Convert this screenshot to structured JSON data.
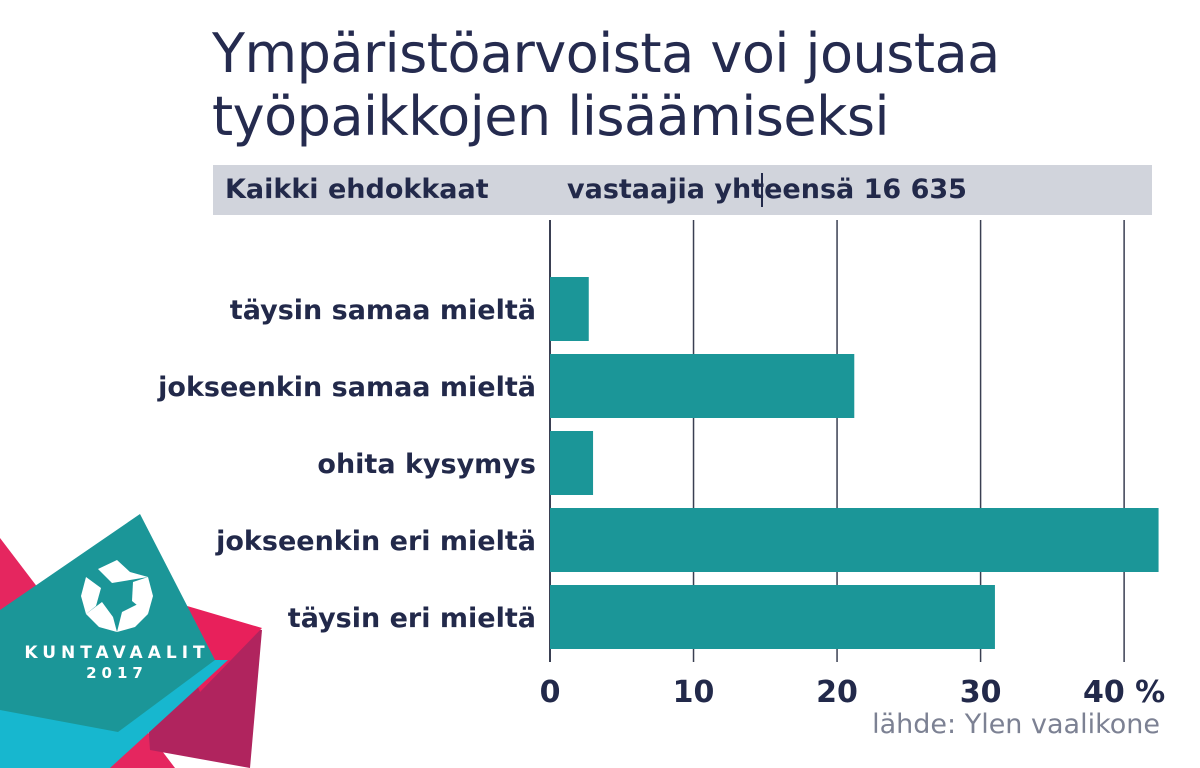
{
  "title_lines": [
    "Ympäristöarvoista voi joustaa",
    "työpaikkojen lisäämiseksi"
  ],
  "subheader": {
    "group": "Kaikki ehdokkaat",
    "count": "vastaajia yhteensä 16 635"
  },
  "source": "lähde: Ylen vaalikone",
  "logo": {
    "line1": "KUNTAVAALIT",
    "line2": "2017"
  },
  "colors": {
    "bar": "#1b9698",
    "grid": "#3a3f52",
    "title": "#252b4f",
    "band": "#d1d4dc"
  },
  "chart_data": {
    "type": "bar",
    "orientation": "horizontal",
    "title": "Ympäristöarvoista voi joustaa työpaikkojen lisäämiseksi",
    "categories": [
      "täysin samaa mieltä",
      "jokseenkin samaa mieltä",
      "ohita kysymys",
      "jokseenkin eri mieltä",
      "täysin eri mieltä"
    ],
    "values": [
      2.7,
      21.2,
      3.0,
      42.4,
      31.0
    ],
    "xlim": [
      0,
      42.5
    ],
    "xticks": [
      0,
      10,
      20,
      30,
      40
    ],
    "xtick_labels": [
      "0",
      "10",
      "20",
      "30",
      "40 %"
    ],
    "grid": true
  }
}
